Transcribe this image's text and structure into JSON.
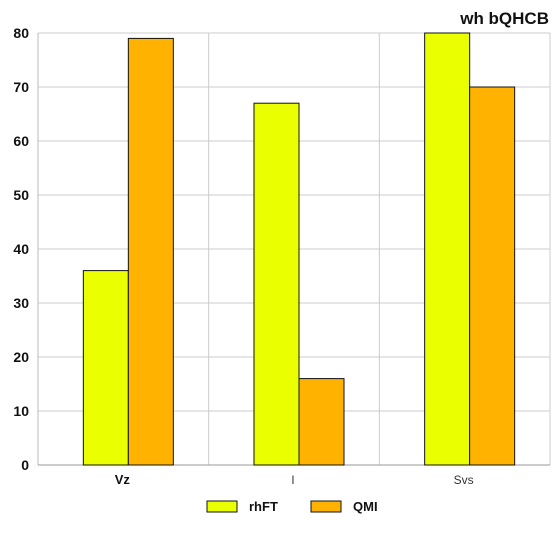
{
  "chart_data": {
    "type": "bar",
    "title": "wh  bQHCB",
    "categories": [
      "Vz",
      "l",
      "Svs"
    ],
    "series": [
      {
        "name": "rhFT",
        "values": [
          36,
          67,
          80
        ],
        "color": "#eaff00"
      },
      {
        "name": "QMI",
        "values": [
          79,
          16,
          70
        ],
        "color": "#ffb300"
      }
    ],
    "ylim": [
      0,
      80
    ],
    "yticks": [
      0,
      10,
      20,
      30,
      40,
      50,
      60,
      70,
      80
    ],
    "grid": true,
    "legend_position": "bottom-center"
  }
}
